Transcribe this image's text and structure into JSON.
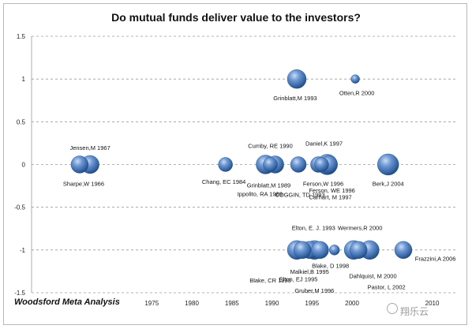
{
  "chart_data": {
    "type": "scatter",
    "title": "Do mutual funds deliver value to the investors?",
    "footer": "Woodsford Meta Analysis",
    "watermark": "翔乐云",
    "xlim": [
      1960,
      2013
    ],
    "ylim": [
      -1.5,
      1.5
    ],
    "x_ticks": [
      1975,
      1980,
      1985,
      1990,
      1995,
      2000,
      2010
    ],
    "y_ticks": [
      1.5,
      1,
      0.5,
      0,
      -0.5,
      -1,
      -1.5
    ],
    "y_tick_labels": [
      "1.5",
      "1",
      "0.5",
      "0",
      "-0.5",
      "-1",
      "-1.5"
    ],
    "grid": "horizontal dashed",
    "bubble_color": "#2f5f9e",
    "points": [
      {
        "label": "Sharpe,W 1966",
        "x": 1966,
        "y": 0,
        "r": 11,
        "lx": 1966.5,
        "ly": -0.22
      },
      {
        "label": "Jensen,M 1967",
        "x": 1967.3,
        "y": 0,
        "r": 11.5,
        "lx": 1967.3,
        "ly": 0.2
      },
      {
        "label": "Chang, EC 1984",
        "x": 1984.2,
        "y": 0,
        "r": 9,
        "lx": 1984,
        "ly": -0.2
      },
      {
        "label": "Cumby, RE 1990",
        "x": 1989.2,
        "y": 0,
        "r": 12,
        "lx": 1989.8,
        "ly": 0.22
      },
      {
        "label": "Grinblatt,M 1989",
        "x": 1990.4,
        "y": 0,
        "r": 11,
        "lx": 1989.6,
        "ly": -0.24
      },
      {
        "label": "Ippolito, RA 1989",
        "x": 1989.8,
        "y": 0,
        "r": 9,
        "lx": 1988.5,
        "ly": -0.34
      },
      {
        "label": "COGGIN, TD 1993",
        "x": 1993.3,
        "y": 0,
        "r": 10,
        "lx": 1993.5,
        "ly": -0.35
      },
      {
        "label": "Daniel,K 1997",
        "x": 1996.9,
        "y": 0,
        "r": 13,
        "lx": 1996.5,
        "ly": 0.25
      },
      {
        "label": "Ferson,W 1996",
        "x": 1995.8,
        "y": 0,
        "r": 10,
        "lx": 1996.4,
        "ly": -0.22
      },
      {
        "label": "Ferson, WE 1996",
        "x": 1996.2,
        "y": 0,
        "r": 9,
        "lx": 1997.5,
        "ly": -0.3
      },
      {
        "label": "Carhart, M 1997",
        "x": 1997.1,
        "y": 0,
        "r": 11,
        "lx": 1997.3,
        "ly": -0.38
      },
      {
        "label": "Berk,J 2004",
        "x": 2004.5,
        "y": 0,
        "r": 13.5,
        "lx": 2004.5,
        "ly": -0.22
      },
      {
        "label": "Grinblatt,M 1993",
        "x": 1993.1,
        "y": 1,
        "r": 12,
        "lx": 1992.9,
        "ly": 0.78
      },
      {
        "label": "Otten,R 2000",
        "x": 2000.4,
        "y": 1,
        "r": 5.5,
        "lx": 2000.6,
        "ly": 0.84
      },
      {
        "label": "Elton, E. J. 1993",
        "x": 1993.1,
        "y": -1,
        "r": 12,
        "lx": 1995.2,
        "ly": -0.74
      },
      {
        "label": "Wermers,R 2000",
        "x": 2000.2,
        "y": -1,
        "r": 12,
        "lx": 2001,
        "ly": -0.74
      },
      {
        "label": "Blake, D 1998",
        "x": 1997.8,
        "y": -1,
        "r": 6.5,
        "lx": 1997.3,
        "ly": -1.18
      },
      {
        "label": "Malkiel,B 1995",
        "x": 1995.3,
        "y": -1,
        "r": 12,
        "lx": 1994.7,
        "ly": -1.25
      },
      {
        "label": "Elton, EJ 1995",
        "x": 1994.7,
        "y": -1,
        "r": 11,
        "lx": 1993.3,
        "ly": -1.34
      },
      {
        "label": "Blake, CR 1993",
        "x": 1993.8,
        "y": -1,
        "r": 11,
        "lx": 1989.8,
        "ly": -1.35
      },
      {
        "label": "Gruber,M 1996",
        "x": 1996,
        "y": -1,
        "r": 11,
        "lx": 1995.3,
        "ly": -1.47
      },
      {
        "label": "Dahlquist, M 2000",
        "x": 2000.8,
        "y": -1,
        "r": 11,
        "lx": 2002.6,
        "ly": -1.3
      },
      {
        "label": "Pastor, L 2002",
        "x": 2002.2,
        "y": -1,
        "r": 12,
        "lx": 2004.3,
        "ly": -1.43
      },
      {
        "label": "Frazzini,A 2006",
        "x": 2006.4,
        "y": -1,
        "r": 11,
        "lx": 2010.4,
        "ly": -1.1
      }
    ]
  }
}
